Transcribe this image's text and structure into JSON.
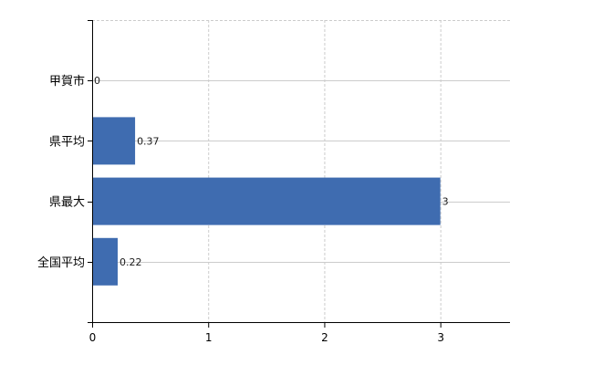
{
  "chart_data": {
    "type": "bar",
    "orientation": "horizontal",
    "categories": [
      "甲賀市",
      "県平均",
      "県最大",
      "全国平均"
    ],
    "values": [
      0,
      0.37,
      3,
      0.22
    ],
    "data_labels": [
      "0",
      "0.37",
      "3",
      "0.22"
    ],
    "x_ticks": [
      "0",
      "1",
      "2",
      "3"
    ],
    "xlim": [
      0,
      3.6
    ],
    "grid": true,
    "title": "",
    "xlabel": "",
    "ylabel": "",
    "bar_color": "#3f6cb0",
    "label_color": "#1a1a1a"
  }
}
